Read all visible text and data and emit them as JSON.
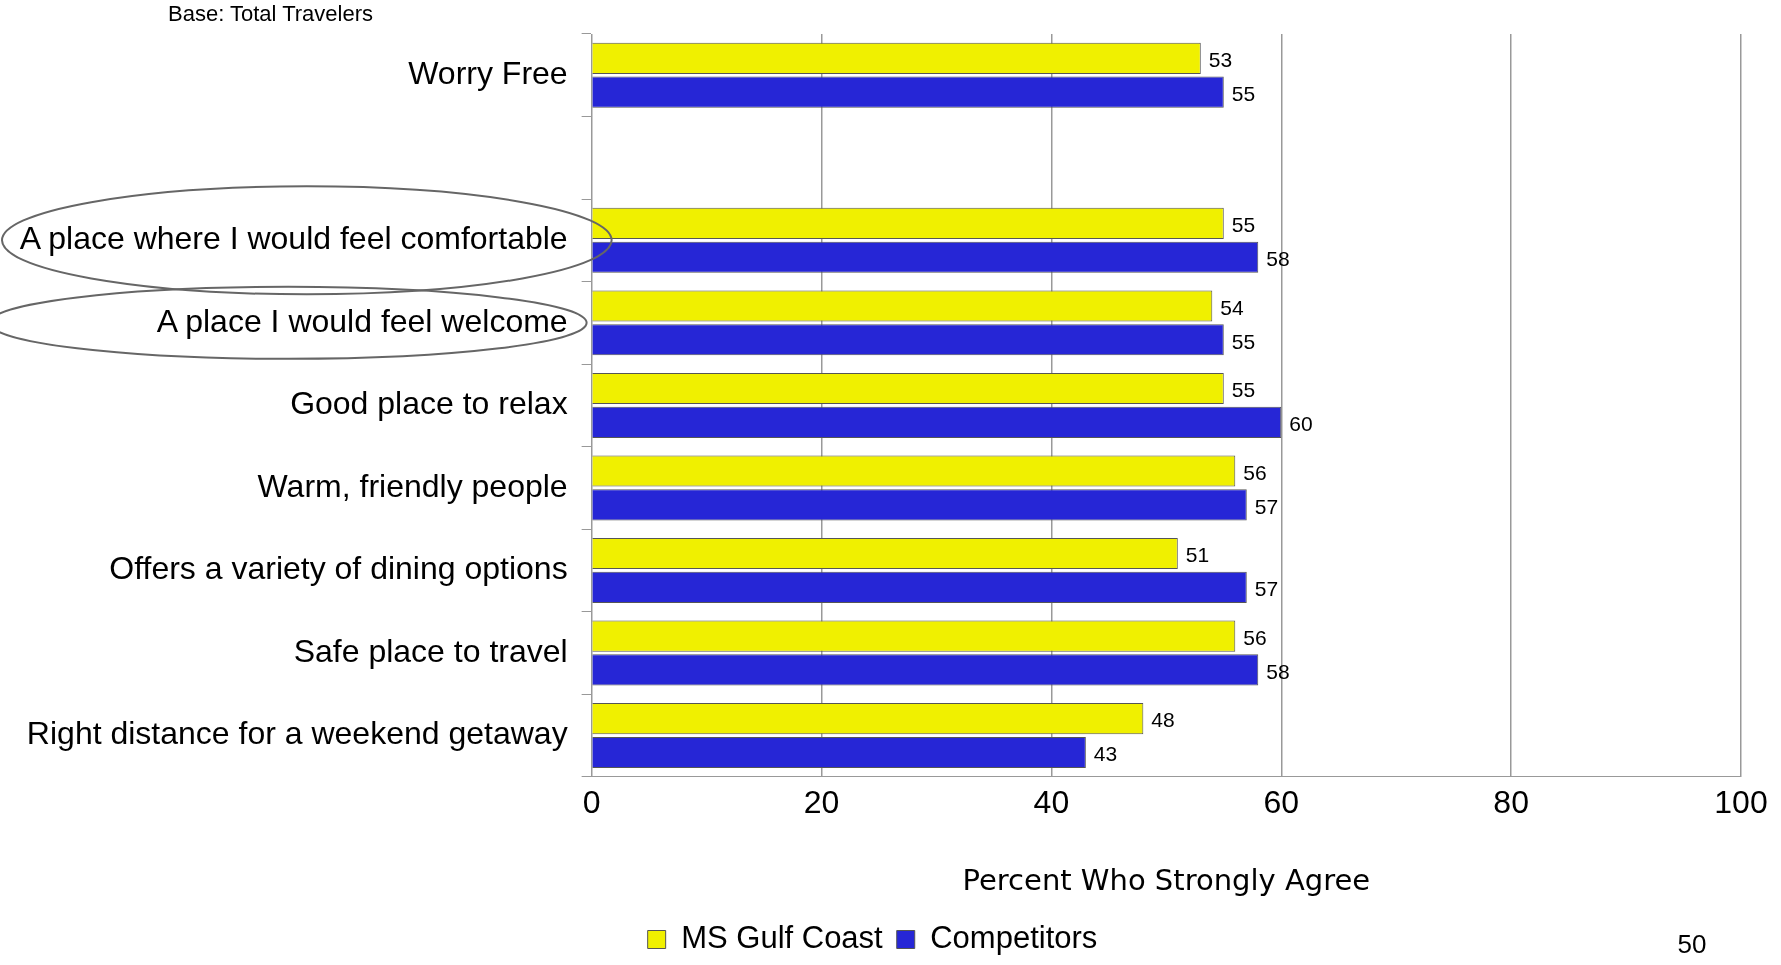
{
  "chart_data": {
    "type": "bar",
    "orientation": "horizontal",
    "xlabel": "Percent Who Strongly Agree",
    "categories": [
      "Worry Free",
      null,
      "A place where I would feel comfortable",
      "A place I would feel welcome",
      "Good place to relax",
      "Warm, friendly people",
      "Offers a variety of dining options",
      "Safe place to travel",
      "Right distance for a weekend getaway"
    ],
    "series": [
      {
        "name": "MS Gulf Coast",
        "color": "#f0f000",
        "values": [
          53,
          null,
          55,
          54,
          55,
          56,
          51,
          56,
          48
        ]
      },
      {
        "name": "Competitors",
        "color": "#2626d6",
        "values": [
          55,
          null,
          58,
          55,
          60,
          57,
          57,
          58,
          43
        ]
      }
    ],
    "xlim": [
      0,
      100
    ],
    "xticks": [
      0,
      20,
      40,
      60,
      80,
      100
    ],
    "grid": "x",
    "legend": "bottom",
    "data_labels": true,
    "annotations": [
      "Base: Total Travelers",
      "50"
    ]
  }
}
